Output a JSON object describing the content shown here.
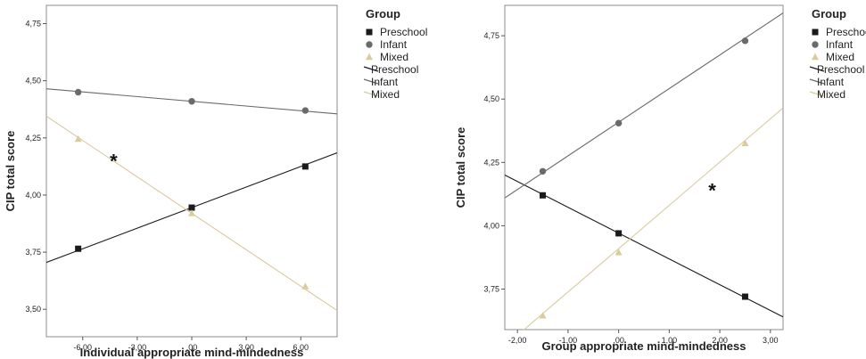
{
  "chart_data": [
    {
      "type": "line",
      "xlabel": "Individual appropriate mind-mindedness",
      "ylabel": "CIP total score",
      "xlim": [
        -8.0,
        8.0
      ],
      "ylim": [
        3.38,
        4.83
      ],
      "x_ticks": [
        -6.0,
        -3.0,
        0.0,
        3.0,
        6.0
      ],
      "x_tick_labels": [
        "-6,00",
        "-3,00",
        ",00",
        "3,00",
        "6,00"
      ],
      "y_ticks": [
        3.5,
        3.75,
        4.0,
        4.25,
        4.5,
        4.75
      ],
      "y_tick_labels": [
        "3,50",
        "3,75",
        "4,00",
        "4,25",
        "4,50",
        "4,75"
      ],
      "grid": false,
      "legend_placement": "right, outside",
      "legend_title": "Group",
      "legend_marker_entries": [
        "Preschool",
        "Infant",
        "Mixed"
      ],
      "legend_line_entries": [
        "Preschool",
        "Infant",
        "Mixed"
      ],
      "annotation": "*",
      "series": [
        {
          "name": "Preschool",
          "marker": "square",
          "color": "#1a1a1a",
          "x": [
            -6.25,
            0.0,
            6.25
          ],
          "y": [
            3.765,
            3.945,
            4.125
          ],
          "line": {
            "x": [
              -8.0,
              8.0
            ],
            "y": [
              3.705,
              4.185
            ]
          }
        },
        {
          "name": "Infant",
          "marker": "circle",
          "color": "#6a6a6a",
          "x": [
            -6.25,
            0.0,
            6.25
          ],
          "y": [
            4.45,
            4.41,
            4.37
          ],
          "line": {
            "x": [
              -8.0,
              8.0
            ],
            "y": [
              4.465,
              4.355
            ]
          }
        },
        {
          "name": "Mixed",
          "marker": "triangle",
          "color": "#d8cc9c",
          "x": [
            -6.25,
            0.0,
            6.25
          ],
          "y": [
            4.245,
            3.92,
            3.6
          ],
          "line": {
            "x": [
              -8.0,
              8.0
            ],
            "y": [
              4.345,
              3.495
            ]
          }
        }
      ]
    },
    {
      "type": "line",
      "xlabel": "Group appropriate mind-mindedness",
      "ylabel": "CIP total score",
      "xlim": [
        -2.25,
        3.25
      ],
      "ylim": [
        3.59,
        4.87
      ],
      "x_ticks": [
        -2.0,
        -1.0,
        0.0,
        1.0,
        2.0,
        3.0
      ],
      "x_tick_labels": [
        "-2,00",
        "-1,00",
        ",00",
        "1,00",
        "2,00",
        "3,00"
      ],
      "y_ticks": [
        3.75,
        4.0,
        4.25,
        4.5,
        4.75
      ],
      "y_tick_labels": [
        "3,75",
        "4,00",
        "4,25",
        "4,50",
        "4,75"
      ],
      "grid": false,
      "legend_placement": "right, outside",
      "legend_title": "Group",
      "legend_marker_entries": [
        "Preschool",
        "Infant",
        "Mixed"
      ],
      "legend_line_entries": [
        "Preschool",
        "Infant",
        "Mixed"
      ],
      "annotation": "*",
      "series": [
        {
          "name": "Preschool",
          "marker": "square",
          "color": "#1a1a1a",
          "x": [
            -1.5,
            0.0,
            2.5
          ],
          "y": [
            4.12,
            3.97,
            3.72
          ],
          "line": {
            "x": [
              -2.25,
              3.25
            ],
            "y": [
              4.2,
              3.64
            ]
          }
        },
        {
          "name": "Infant",
          "marker": "circle",
          "color": "#6a6a6a",
          "x": [
            -1.5,
            0.0,
            2.5
          ],
          "y": [
            4.215,
            4.405,
            4.73
          ],
          "line": {
            "x": [
              -2.25,
              3.25
            ],
            "y": [
              4.11,
              4.84
            ]
          }
        },
        {
          "name": "Mixed",
          "marker": "triangle",
          "color": "#d8cc9c",
          "x": [
            -1.5,
            0.0,
            2.5
          ],
          "y": [
            3.645,
            3.895,
            4.325
          ],
          "line": {
            "x": [
              -2.25,
              3.25
            ],
            "y": [
              3.525,
              4.465
            ]
          }
        }
      ]
    }
  ]
}
